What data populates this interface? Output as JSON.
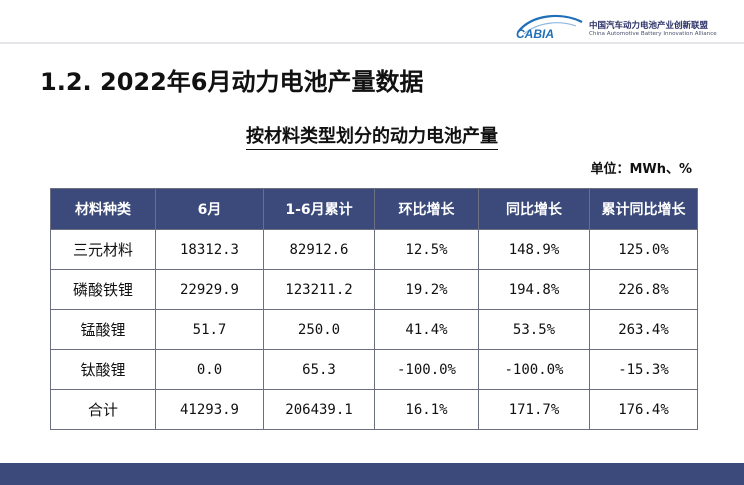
{
  "logo": {
    "brand": "CABIA",
    "name_cn": "中国汽车动力电池产业创新联盟",
    "name_en": "China Automotive Battery Innovation Alliance",
    "color": "#1f6fb8"
  },
  "slide": {
    "title": "1.2. 2022年6月动力电池产量数据",
    "table_caption": "按材料类型划分的动力电池产量",
    "unit": "单位：MWh、%"
  },
  "table": {
    "headers": [
      "材料种类",
      "6月",
      "1-6月累计",
      "环比增长",
      "同比增长",
      "累计同比增长"
    ],
    "rows": [
      [
        "三元材料",
        "18312.3",
        "82912.6",
        "12.5%",
        "148.9%",
        "125.0%"
      ],
      [
        "磷酸铁锂",
        "22929.9",
        "123211.2",
        "19.2%",
        "194.8%",
        "226.8%"
      ],
      [
        "锰酸锂",
        "51.7",
        "250.0",
        "41.4%",
        "53.5%",
        "263.4%"
      ],
      [
        "钛酸锂",
        "0.0",
        "65.3",
        "-100.0%",
        "-100.0%",
        "-15.3%"
      ],
      [
        "合计",
        "41293.9",
        "206439.1",
        "16.1%",
        "171.7%",
        "176.4%"
      ]
    ]
  },
  "colors": {
    "header_bg": "#3b4a7a",
    "footer_bg": "#3b4a7a"
  }
}
